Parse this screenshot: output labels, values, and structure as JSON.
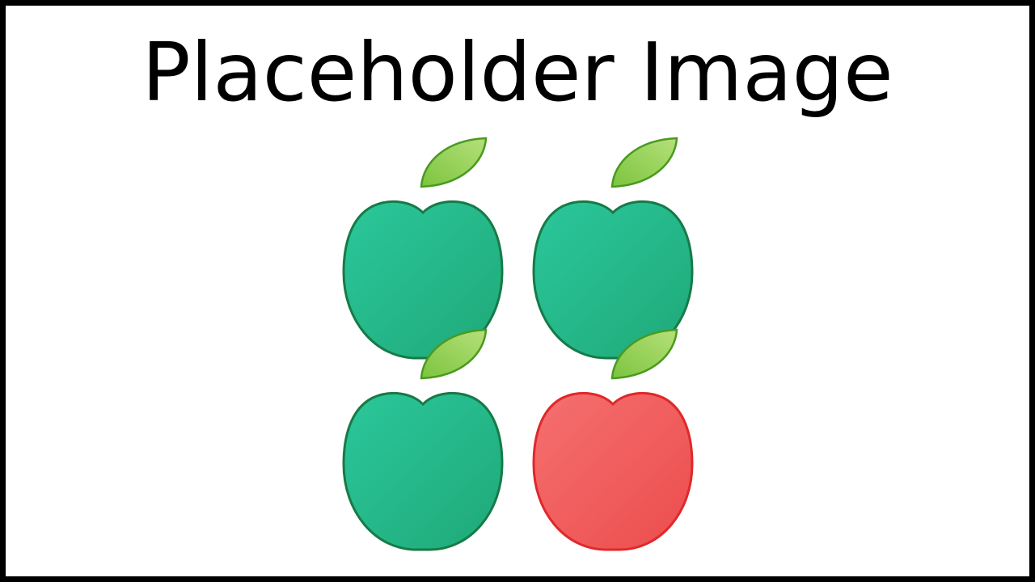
{
  "title": "Placeholder Image",
  "apples": [
    {
      "name": "apple-top-left",
      "color": "green"
    },
    {
      "name": "apple-top-right",
      "color": "green"
    },
    {
      "name": "apple-bottom-left",
      "color": "green"
    },
    {
      "name": "apple-bottom-right",
      "color": "red"
    }
  ],
  "colors": {
    "green_fill": "#25b88c",
    "green_stroke": "#177a48",
    "red_fill": "#f06060",
    "red_stroke": "#e0282a",
    "leaf_fill": "#8fce4a",
    "leaf_stroke": "#4a9a20",
    "border": "#000000"
  }
}
